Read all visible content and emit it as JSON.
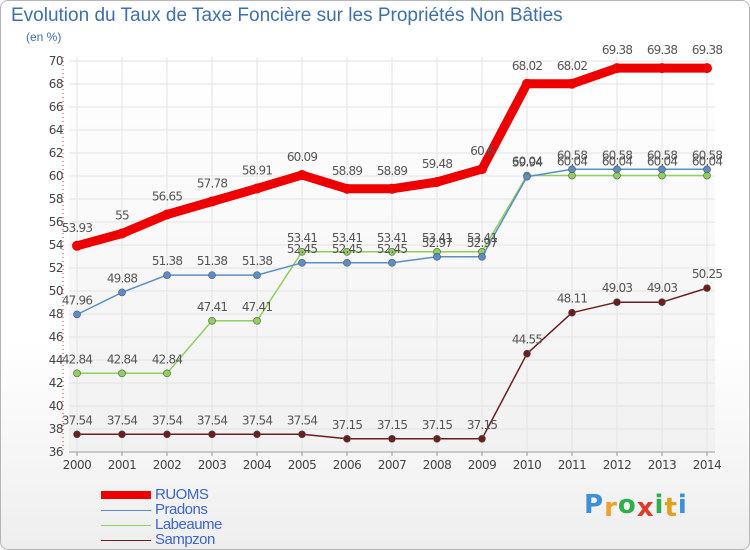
{
  "title": "Evolution du Taux de Taxe Foncière sur les Propriétés Non Bâties",
  "unit_label": "(en %)",
  "logo": {
    "text": "Proxiti",
    "letters": [
      "P",
      "r",
      "o",
      "x",
      "i",
      "t",
      "i"
    ],
    "colors": [
      "#3d8fd6",
      "#f0a030",
      "#2fae4e",
      "#e03a2a",
      "#2fae4e",
      "#e0a020",
      "#3d8fd6"
    ]
  },
  "chart_data": {
    "type": "line",
    "title": "Evolution du Taux de Taxe Foncière sur les Propriétés Non Bâties",
    "ylabel": "(en %)",
    "xlabel": "",
    "ylim": [
      36,
      70
    ],
    "yticks": [
      36,
      38,
      40,
      42,
      44,
      46,
      48,
      50,
      52,
      54,
      56,
      58,
      60,
      62,
      64,
      66,
      68,
      70
    ],
    "grid": true,
    "legend_position": "bottom-left",
    "x": [
      "2000",
      "2001",
      "2002",
      "2003",
      "2004",
      "2005",
      "2006",
      "2007",
      "2008",
      "2009",
      "2010",
      "2011",
      "2012",
      "2013",
      "2014"
    ],
    "series": [
      {
        "name": "RUOMS",
        "color": "#ee0000",
        "values": [
          53.93,
          55,
          56.65,
          57.78,
          58.91,
          60.09,
          58.89,
          58.89,
          59.48,
          60.6,
          68.02,
          68.02,
          69.38,
          69.38,
          69.38
        ],
        "labels": [
          "53.93",
          "55",
          "56.65",
          "57.78",
          "58.91",
          "60.09",
          "58.89",
          "58.89",
          "59.48",
          "60.6",
          "68.02",
          "68.02",
          "69.38",
          "69.38",
          "69.38"
        ]
      },
      {
        "name": "Pradons",
        "color": "#5b8ec9",
        "values": [
          47.96,
          49.88,
          51.38,
          51.38,
          51.38,
          52.45,
          52.45,
          52.45,
          52.97,
          52.97,
          59.94,
          60.58,
          60.58,
          60.58,
          60.58
        ],
        "labels": [
          "47.96",
          "49.88",
          "51.38",
          "51.38",
          "51.38",
          "52.45",
          "52.45",
          "52.45",
          "52.97",
          "52.97",
          "59.94",
          "60.58",
          "60.58",
          "60.58",
          "60.58"
        ]
      },
      {
        "name": "Labeaume",
        "color": "#8fd15a",
        "values": [
          42.84,
          42.84,
          42.84,
          47.41,
          47.41,
          53.41,
          53.41,
          53.41,
          53.41,
          53.41,
          60.04,
          60.04,
          60.04,
          60.04,
          60.04
        ],
        "labels": [
          "42.84",
          "42.84",
          "42.84",
          "47.41",
          "47.41",
          "53.41",
          "53.41",
          "53.41",
          "53.41",
          "53.41",
          "60.04",
          "60.04",
          "60.04",
          "60.04",
          "60.04"
        ]
      },
      {
        "name": "Sampzon",
        "color": "#6b1e1e",
        "values": [
          37.54,
          37.54,
          37.54,
          37.54,
          37.54,
          37.54,
          37.15,
          37.15,
          37.15,
          37.15,
          44.55,
          48.11,
          49.03,
          49.03,
          50.25
        ],
        "labels": [
          "37.54",
          "37.54",
          "37.54",
          "37.54",
          "37.54",
          "37.54",
          "37.15",
          "37.15",
          "37.15",
          "37.15",
          "44.55",
          "48.11",
          "49.03",
          "49.03",
          "50.25"
        ]
      }
    ]
  }
}
